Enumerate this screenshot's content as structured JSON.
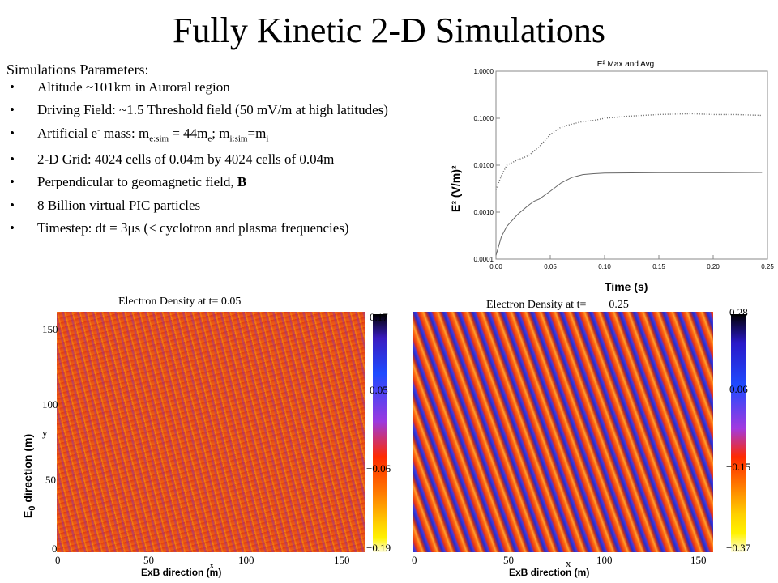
{
  "title": "Fully Kinetic 2-D Simulations",
  "params": {
    "heading": "Simulations Parameters:",
    "bullet_glyph": "•",
    "items": [
      {
        "text": "Altitude ~101km in Auroral region"
      },
      {
        "text": "Driving Field: ~1.5 Threshold field (50 mV/m at high latitudes)"
      },
      {
        "pre": "Artificial e",
        "sup": "-",
        "mid1": " mass: m",
        "sub1": "e:sim",
        "mid2": " = 44m",
        "sub2": "e",
        "mid3": "; m",
        "sub3": "i:sim",
        "mid4": "=m",
        "sub4": "i"
      },
      {
        "text": "2-D Grid: 4024 cells of 0.04m by 4024 cells of 0.04m"
      },
      {
        "text": "Perpendicular to geomagnetic  field, ",
        "bold": "B"
      },
      {
        "text": "8 Billion virtual PIC particles"
      },
      {
        "text": "Timestep: dt = 3μs (< cyclotron and plasma frequencies)"
      }
    ]
  },
  "chart_data": [
    {
      "type": "line",
      "title": "E² Max and Avg",
      "xlabel": "Time (s)",
      "ylabel": "E² (V/m)²",
      "yscale": "log",
      "xlim": [
        0,
        0.25
      ],
      "ylim": [
        0.0001,
        1.0
      ],
      "x_ticks": [
        "0.00",
        "0.05",
        "0.10",
        "0.15",
        "0.20",
        "0.25"
      ],
      "y_ticks": [
        "1.0000",
        "0.1000",
        "0.0100",
        "0.0010",
        "0.0001"
      ],
      "series": [
        {
          "style": "dotted",
          "x": [
            0.0,
            0.005,
            0.01,
            0.02,
            0.03,
            0.04,
            0.05,
            0.06,
            0.07,
            0.08,
            0.09,
            0.1,
            0.12,
            0.15,
            0.18,
            0.2,
            0.22,
            0.245
          ],
          "y": [
            0.003,
            0.006,
            0.01,
            0.013,
            0.016,
            0.025,
            0.045,
            0.065,
            0.075,
            0.085,
            0.09,
            0.1,
            0.11,
            0.12,
            0.125,
            0.12,
            0.12,
            0.115
          ]
        },
        {
          "style": "solid",
          "x": [
            0.0,
            0.005,
            0.01,
            0.02,
            0.03,
            0.035,
            0.04,
            0.05,
            0.06,
            0.07,
            0.08,
            0.09,
            0.1,
            0.15,
            0.2,
            0.245
          ],
          "y": [
            0.00012,
            0.0003,
            0.0005,
            0.0009,
            0.0014,
            0.0017,
            0.0019,
            0.0028,
            0.0042,
            0.0055,
            0.0063,
            0.0066,
            0.0068,
            0.0069,
            0.0069,
            0.007
          ]
        }
      ]
    },
    {
      "type": "heatmap",
      "title": "Electron Density  at t=  0.05",
      "xlabel": "x",
      "ylabel": "y",
      "x_ticks": [
        "0",
        "50",
        "100",
        "150"
      ],
      "y_ticks": [
        "150",
        "100",
        "50",
        "0"
      ],
      "colorbar_ticks": [
        "0.17",
        "0.05",
        "−0.06",
        "−0.19"
      ],
      "colorbar_range": [
        -0.19,
        0.17
      ]
    },
    {
      "type": "heatmap",
      "title": "Electron Density at t=",
      "title_value": "0.25",
      "xlabel": "x",
      "x_ticks": [
        "0",
        "50",
        "100",
        "150"
      ],
      "colorbar_ticks": [
        "0.28",
        "0.06",
        "−0.15",
        "−0.37"
      ],
      "colorbar_range": [
        -0.37,
        0.28
      ]
    }
  ],
  "figure_labels": {
    "e0_pre": "E",
    "e0_sub": "0",
    "e0_post": " direction (m)",
    "exb_left": "ExB direction  (m)",
    "exb_right": "ExB direction  (m)"
  },
  "colors": {
    "density_low": "#2030d0",
    "density_mid": "#e8501a",
    "density_high": "#fff200"
  }
}
